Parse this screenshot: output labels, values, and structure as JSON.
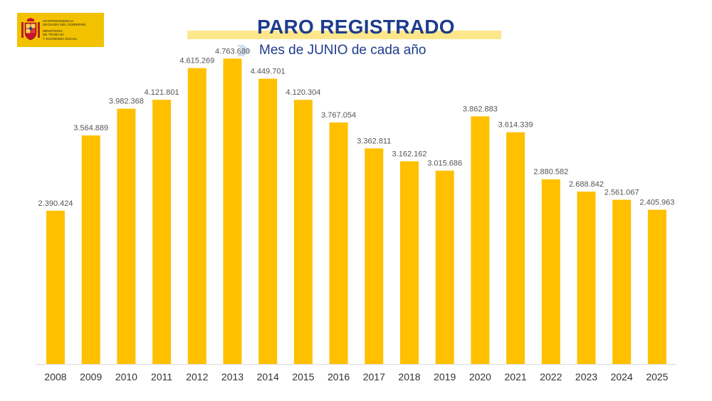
{
  "header": {
    "logo_lines": [
      "VICEPRESIDENCIA",
      "SEGUNDA DEL GOBIERNO",
      "MINISTERIO",
      "DE TRABAJO",
      "Y ECONOMÍA SOCIAL"
    ],
    "logo_color": "#f2c200"
  },
  "chart_data": {
    "type": "bar",
    "title": "PARO REGISTRADO",
    "subtitle": "Mes de JUNIO de cada año",
    "xlabel": "",
    "ylabel": "",
    "ylim": [
      0,
      5000000
    ],
    "grid": false,
    "bar_color": "#ffc000",
    "categories": [
      "2008",
      "2009",
      "2010",
      "2011",
      "2012",
      "2013",
      "2014",
      "2015",
      "2016",
      "2017",
      "2018",
      "2019",
      "2020",
      "2021",
      "2022",
      "2023",
      "2024",
      "2025"
    ],
    "values": [
      2390424,
      3564889,
      3982368,
      4121801,
      4615269,
      4763680,
      4449701,
      4120304,
      3767054,
      3362811,
      3162162,
      3015686,
      3862883,
      3614339,
      2880582,
      2688842,
      2561067,
      2405963
    ],
    "labels": [
      "2.390.424",
      "3.564.889",
      "3.982.368",
      "4.121.801",
      "4.615.269",
      "4.763.680",
      "4.449.701",
      "4.120.304",
      "3.767.054",
      "3.362.811",
      "3.162.162",
      "3.015.686",
      "3.862.883",
      "3.614.339",
      "2.880.582",
      "2.688.842",
      "2.561.067",
      "2.405.963"
    ]
  }
}
